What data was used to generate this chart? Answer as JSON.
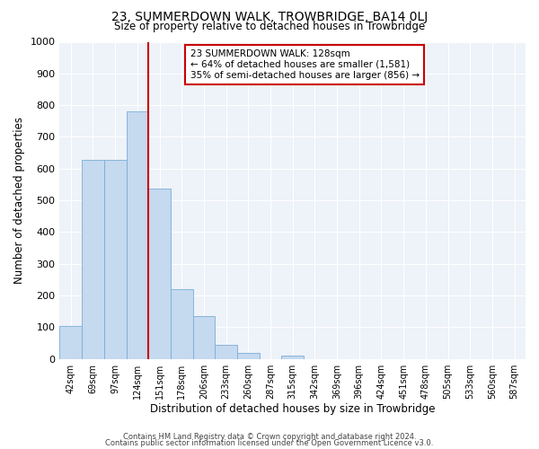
{
  "title": "23, SUMMERDOWN WALK, TROWBRIDGE, BA14 0LJ",
  "subtitle": "Size of property relative to detached houses in Trowbridge",
  "xlabel": "Distribution of detached houses by size in Trowbridge",
  "ylabel": "Number of detached properties",
  "bar_labels": [
    "42sqm",
    "69sqm",
    "97sqm",
    "124sqm",
    "151sqm",
    "178sqm",
    "206sqm",
    "233sqm",
    "260sqm",
    "287sqm",
    "315sqm",
    "342sqm",
    "369sqm",
    "396sqm",
    "424sqm",
    "451sqm",
    "478sqm",
    "505sqm",
    "533sqm",
    "560sqm",
    "587sqm"
  ],
  "bar_values": [
    103,
    628,
    628,
    780,
    537,
    220,
    135,
    44,
    18,
    0,
    10,
    0,
    0,
    0,
    0,
    0,
    0,
    0,
    0,
    0,
    0
  ],
  "bar_color": "#c5d9ef",
  "bar_edge_color": "#7aadd4",
  "marker_label": "23 SUMMERDOWN WALK: 128sqm",
  "annotation_line1": "← 64% of detached houses are smaller (1,581)",
  "annotation_line2": "35% of semi-detached houses are larger (856) →",
  "annotation_box_color": "#ffffff",
  "annotation_box_edge": "#cc0000",
  "vline_color": "#cc0000",
  "vline_x_index": 3,
  "ylim": [
    0,
    1000
  ],
  "yticks": [
    0,
    100,
    200,
    300,
    400,
    500,
    600,
    700,
    800,
    900,
    1000
  ],
  "footer1": "Contains HM Land Registry data © Crown copyright and database right 2024.",
  "footer2": "Contains public sector information licensed under the Open Government Licence v3.0.",
  "bg_color": "#ffffff",
  "plot_bg_color": "#eef2f9",
  "grid_color": "#ffffff"
}
